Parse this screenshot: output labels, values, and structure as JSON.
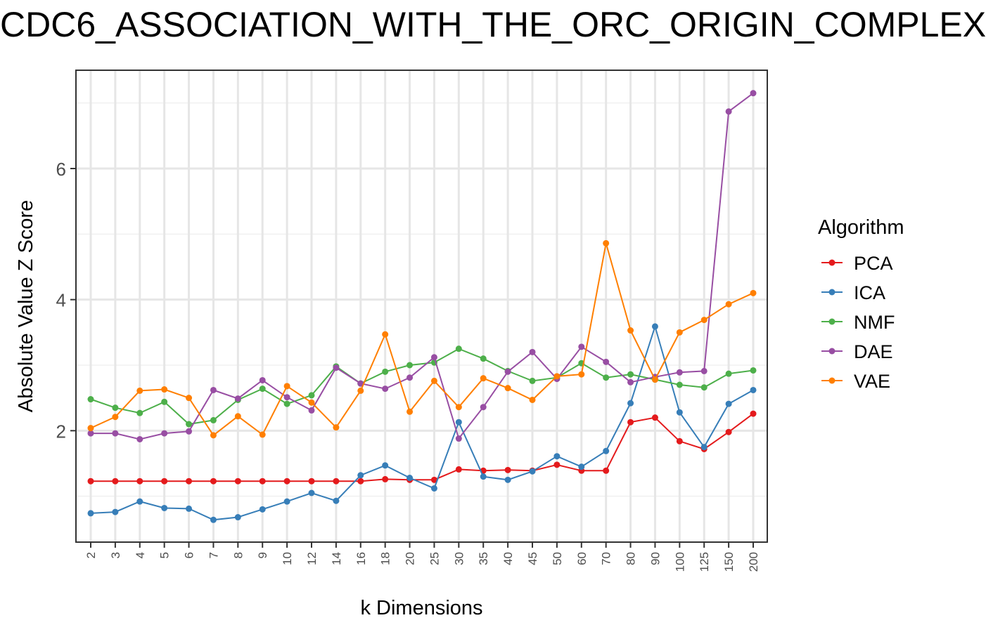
{
  "chart_data": {
    "type": "line",
    "title": "CDC6_ASSOCIATION_WITH_THE_ORC_ORIGIN_COMPLEX",
    "xlabel": "k Dimensions",
    "ylabel": "Absolute Value Z Score",
    "categories": [
      "2",
      "3",
      "4",
      "5",
      "6",
      "7",
      "8",
      "9",
      "10",
      "12",
      "14",
      "16",
      "18",
      "20",
      "25",
      "30",
      "35",
      "40",
      "45",
      "50",
      "60",
      "70",
      "80",
      "90",
      "100",
      "125",
      "150",
      "200"
    ],
    "ylim": [
      0.3,
      7.5
    ],
    "yticks": [
      2,
      4,
      6
    ],
    "grid": true,
    "legend": {
      "title": "Algorithm",
      "position": "right"
    },
    "series": [
      {
        "name": "PCA",
        "color": "#e41a1c",
        "values": [
          1.23,
          1.23,
          1.23,
          1.23,
          1.23,
          1.23,
          1.23,
          1.23,
          1.23,
          1.23,
          1.23,
          1.23,
          1.26,
          1.25,
          1.25,
          1.41,
          1.39,
          1.4,
          1.39,
          1.48,
          1.39,
          1.39,
          2.13,
          2.2,
          1.84,
          1.72,
          1.98,
          2.26
        ]
      },
      {
        "name": "ICA",
        "color": "#377eb8",
        "values": [
          0.74,
          0.76,
          0.92,
          0.82,
          0.81,
          0.64,
          0.68,
          0.8,
          0.92,
          1.05,
          0.93,
          1.32,
          1.47,
          1.28,
          1.12,
          2.13,
          1.3,
          1.25,
          1.38,
          1.61,
          1.45,
          1.69,
          2.42,
          3.59,
          2.28,
          1.75,
          2.41,
          2.62
        ]
      },
      {
        "name": "NMF",
        "color": "#4daf4a",
        "values": [
          2.48,
          2.35,
          2.27,
          2.44,
          2.1,
          2.16,
          2.47,
          2.64,
          2.41,
          2.54,
          2.98,
          2.72,
          2.9,
          3.0,
          3.04,
          3.25,
          3.1,
          2.91,
          2.76,
          2.81,
          3.03,
          2.81,
          2.86,
          2.78,
          2.7,
          2.66,
          2.87,
          2.92
        ]
      },
      {
        "name": "DAE",
        "color": "#984ea3",
        "values": [
          1.96,
          1.96,
          1.87,
          1.96,
          1.99,
          2.62,
          2.49,
          2.77,
          2.51,
          2.31,
          2.96,
          2.72,
          2.64,
          2.81,
          3.12,
          1.88,
          2.36,
          2.9,
          3.2,
          2.79,
          3.28,
          3.05,
          2.74,
          2.82,
          2.89,
          2.91,
          6.87,
          7.15
        ]
      },
      {
        "name": "VAE",
        "color": "#ff7f00",
        "values": [
          2.04,
          2.21,
          2.61,
          2.63,
          2.5,
          1.93,
          2.22,
          1.94,
          2.68,
          2.43,
          2.05,
          2.61,
          3.47,
          2.29,
          2.76,
          2.36,
          2.8,
          2.65,
          2.47,
          2.83,
          2.86,
          4.86,
          3.53,
          2.78,
          3.5,
          3.69,
          3.93,
          4.1
        ]
      }
    ]
  }
}
